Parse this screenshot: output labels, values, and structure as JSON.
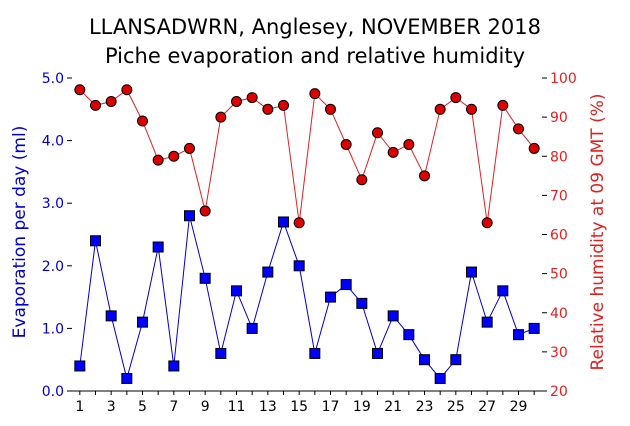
{
  "colors": {
    "evaporation": "#0000cc",
    "evaporation_marker": "#0000ff",
    "humidity": "#dd2222",
    "humidity_marker": "#dd0000",
    "axis": "#000000"
  },
  "chart_data": {
    "type": "line",
    "title": "LLANSADWRN, Anglesey, NOVEMBER 2018",
    "subtitle": "Piche evaporation and relative humidity",
    "xlabel": "",
    "x": [
      1,
      2,
      3,
      4,
      5,
      6,
      7,
      8,
      9,
      10,
      11,
      12,
      13,
      14,
      15,
      16,
      17,
      18,
      19,
      20,
      21,
      22,
      23,
      24,
      25,
      26,
      27,
      28,
      29,
      30
    ],
    "x_tick_labels": [
      "1",
      "3",
      "5",
      "7",
      "9",
      "11",
      "13",
      "15",
      "17",
      "19",
      "21",
      "23",
      "25",
      "27",
      "29"
    ],
    "x_tick_values": [
      1,
      3,
      5,
      7,
      9,
      11,
      13,
      15,
      17,
      19,
      21,
      23,
      25,
      27,
      29
    ],
    "xlim": [
      0.5,
      30.5
    ],
    "y_left": {
      "label": "Evaporation per day (ml)",
      "ylim": [
        0,
        5
      ],
      "ticks": [
        0,
        1,
        2,
        3,
        4,
        5
      ],
      "tick_labels": [
        "0.0",
        "1.0",
        "2.0",
        "3.0",
        "4.0",
        "5.0"
      ]
    },
    "y_right": {
      "label": "Relative humidity at 09 GMT (%)",
      "ylim": [
        20,
        100
      ],
      "ticks": [
        20,
        30,
        40,
        50,
        60,
        70,
        80,
        90,
        100
      ],
      "tick_labels": [
        "20",
        "30",
        "40",
        "50",
        "60",
        "70",
        "80",
        "90",
        "100"
      ]
    },
    "grid": false,
    "series": [
      {
        "key": "evaporation",
        "axis": "left",
        "marker": "square",
        "values": [
          0.4,
          2.4,
          1.2,
          0.2,
          1.1,
          2.3,
          0.4,
          2.8,
          1.8,
          0.6,
          1.6,
          1.0,
          1.9,
          2.7,
          2.0,
          0.6,
          1.5,
          1.7,
          1.4,
          0.6,
          1.2,
          0.9,
          0.5,
          0.2,
          0.5,
          1.9,
          1.1,
          1.6,
          0.9,
          1.0
        ]
      },
      {
        "key": "humidity",
        "axis": "right",
        "marker": "circle",
        "values": [
          97,
          93,
          94,
          97,
          89,
          79,
          80,
          82,
          66,
          90,
          94,
          95,
          92,
          93,
          63,
          96,
          92,
          83,
          74,
          86,
          81,
          83,
          75,
          92,
          95,
          92,
          63,
          93,
          87,
          82
        ]
      }
    ]
  }
}
